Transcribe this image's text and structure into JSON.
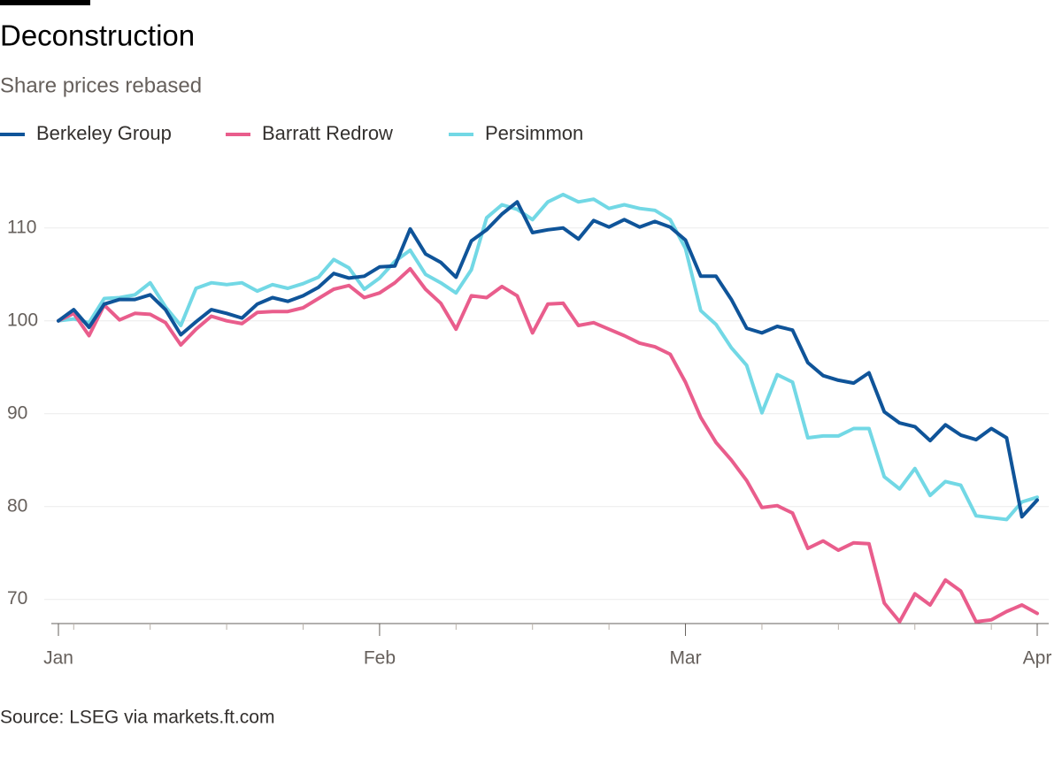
{
  "chart_data": {
    "type": "line",
    "title": "Deconstruction",
    "subtitle": "Share prices rebased",
    "source": "Source: LSEG via markets.ft.com",
    "categories": [
      "Jan",
      null,
      null,
      null,
      null,
      null,
      null,
      null,
      null,
      null,
      null,
      null,
      null,
      null,
      null,
      null,
      null,
      null,
      null,
      null,
      null,
      "Feb",
      null,
      null,
      null,
      null,
      null,
      null,
      null,
      null,
      null,
      null,
      null,
      null,
      null,
      null,
      null,
      null,
      null,
      null,
      null,
      "Mar",
      null,
      null,
      null,
      null,
      null,
      null,
      null,
      null,
      null,
      null,
      null,
      null,
      null,
      null,
      null,
      null,
      null,
      null,
      null,
      null,
      null,
      null,
      "Apr"
    ],
    "series": [
      {
        "name": "Berkeley Group",
        "color": "#0f5499",
        "values": [
          100,
          101.2,
          99.3,
          101.8,
          102.3,
          102.3,
          102.8,
          101.2,
          98.5,
          99.9,
          101.2,
          100.8,
          100.3,
          101.8,
          102.5,
          102.1,
          102.7,
          103.6,
          105.1,
          104.6,
          104.8,
          105.8,
          105.9,
          109.9,
          107.2,
          106.3,
          104.7,
          108.6,
          109.8,
          111.5,
          112.8,
          109.5,
          109.8,
          110.0,
          108.8,
          110.8,
          110.1,
          110.9,
          110.1,
          110.7,
          110.1,
          108.7,
          104.8,
          104.8,
          102.3,
          99.2,
          98.7,
          99.4,
          99.0,
          95.5,
          94.1,
          93.6,
          93.3,
          94.4,
          90.2,
          89.0,
          88.6,
          87.1,
          88.8,
          87.7,
          87.2,
          88.4,
          87.4,
          78.9,
          80.7
        ]
      },
      {
        "name": "Barratt Redrow",
        "color": "#e95d8c",
        "values": [
          100,
          100.8,
          98.4,
          101.7,
          100.1,
          100.8,
          100.7,
          99.8,
          97.4,
          99.1,
          100.5,
          100.0,
          99.7,
          100.9,
          101.0,
          101.0,
          101.4,
          102.4,
          103.4,
          103.8,
          102.5,
          103.0,
          104.1,
          105.6,
          103.4,
          101.9,
          99.1,
          102.7,
          102.5,
          103.7,
          102.7,
          98.7,
          101.8,
          101.9,
          99.5,
          99.8,
          99.1,
          98.4,
          97.6,
          97.2,
          96.4,
          93.4,
          89.6,
          86.9,
          85.0,
          82.8,
          79.9,
          80.1,
          79.3,
          75.5,
          76.3,
          75.3,
          76.1,
          76.0,
          69.6,
          67.6,
          70.6,
          69.4,
          72.1,
          70.9,
          67.6,
          67.8,
          68.7,
          69.4,
          68.5
        ]
      },
      {
        "name": "Persimmon",
        "color": "#72d8e5",
        "values": [
          100,
          100.2,
          99.8,
          102.4,
          102.5,
          102.8,
          104.1,
          101.5,
          99.5,
          103.5,
          104.1,
          103.9,
          104.1,
          103.2,
          103.9,
          103.5,
          104.0,
          104.7,
          106.6,
          105.7,
          103.4,
          104.6,
          106.4,
          107.6,
          105.0,
          104.1,
          103.0,
          105.5,
          111.1,
          112.5,
          112.0,
          110.9,
          112.8,
          113.6,
          112.8,
          113.1,
          112.1,
          112.5,
          112.1,
          111.9,
          110.9,
          107.8,
          101.1,
          99.6,
          97.1,
          95.2,
          90.1,
          94.2,
          93.4,
          87.4,
          87.6,
          87.6,
          88.4,
          88.4,
          83.2,
          81.9,
          84.1,
          81.2,
          82.7,
          82.3,
          79.0,
          78.8,
          78.6,
          80.5,
          81.0
        ]
      }
    ],
    "ylim": [
      67.4,
      115.5
    ],
    "yticks": [
      70,
      80,
      90,
      100,
      110
    ],
    "grid": true
  }
}
